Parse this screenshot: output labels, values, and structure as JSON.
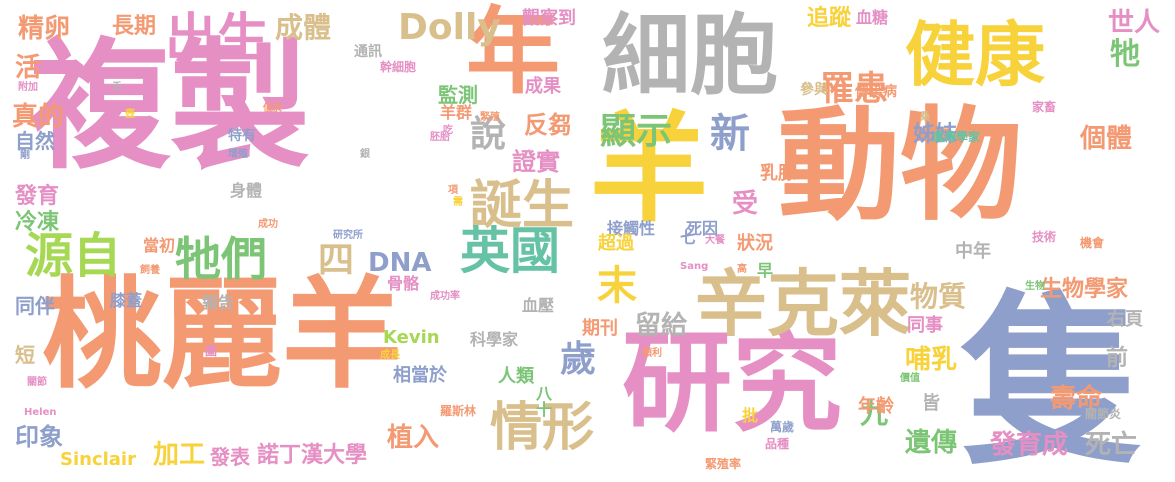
{
  "palette": {
    "orange": "#f49a73",
    "pink": "#e58fc4",
    "gray": "#b3b3b3",
    "yellow": "#f7d23a",
    "blue": "#8f9fcc",
    "green": "#7cc576",
    "tan": "#d9bf8c",
    "teal": "#66c2a5",
    "lime": "#a6d854"
  },
  "words": [
    {
      "text": "複製",
      "color": "pink"
    },
    {
      "text": "動物",
      "color": "orange"
    },
    {
      "text": "桃麗羊",
      "color": "orange"
    },
    {
      "text": "隻",
      "color": "blue"
    },
    {
      "text": "研究",
      "color": "pink"
    },
    {
      "text": "細胞",
      "color": "gray"
    },
    {
      "text": "年",
      "color": "orange"
    },
    {
      "text": "羊",
      "color": "yellow"
    },
    {
      "text": "健康",
      "color": "yellow"
    },
    {
      "text": "辛克萊",
      "color": "tan"
    },
    {
      "text": "出生",
      "color": "pink"
    },
    {
      "text": "誕生",
      "color": "tan"
    },
    {
      "text": "源自",
      "color": "lime"
    },
    {
      "text": "牠們",
      "color": "green"
    },
    {
      "text": "英國",
      "color": "teal"
    },
    {
      "text": "情形",
      "color": "tan"
    },
    {
      "text": "顯示",
      "color": "green"
    },
    {
      "text": "新",
      "color": "blue"
    },
    {
      "text": "罹患",
      "color": "orange"
    },
    {
      "text": "四",
      "color": "tan"
    },
    {
      "text": "末",
      "color": "yellow"
    },
    {
      "text": "歲",
      "color": "blue"
    },
    {
      "text": "說",
      "color": "gray"
    },
    {
      "text": "Dolly",
      "color": "tan"
    },
    {
      "text": "成體",
      "color": "tan"
    },
    {
      "text": "精卵",
      "color": "orange"
    },
    {
      "text": "長期",
      "color": "orange"
    },
    {
      "text": "世人",
      "color": "pink"
    },
    {
      "text": "牠",
      "color": "green"
    },
    {
      "text": "個體",
      "color": "orange"
    },
    {
      "text": "姊妹",
      "color": "blue"
    },
    {
      "text": "物質",
      "color": "tan"
    },
    {
      "text": "生物學家",
      "color": "orange"
    },
    {
      "text": "DNA",
      "color": "blue"
    },
    {
      "text": "留給",
      "color": "gray"
    },
    {
      "text": "證實",
      "color": "pink"
    },
    {
      "text": "反芻",
      "color": "orange"
    },
    {
      "text": "監測",
      "color": "green"
    },
    {
      "text": "哺乳",
      "color": "yellow"
    },
    {
      "text": "受",
      "color": "pink"
    },
    {
      "text": "九",
      "color": "green"
    },
    {
      "text": "壽命",
      "color": "orange"
    },
    {
      "text": "遺傳",
      "color": "green"
    },
    {
      "text": "發育成",
      "color": "pink"
    },
    {
      "text": "死亡",
      "color": "gray"
    },
    {
      "text": "諾丁漢大學",
      "color": "pink"
    },
    {
      "text": "加工",
      "color": "yellow"
    },
    {
      "text": "植入",
      "color": "orange"
    },
    {
      "text": "印象",
      "color": "blue"
    },
    {
      "text": "同伴",
      "color": "blue"
    },
    {
      "text": "真的",
      "color": "orange"
    },
    {
      "text": "發育",
      "color": "pink"
    },
    {
      "text": "活",
      "color": "orange"
    },
    {
      "text": "自然",
      "color": "blue"
    },
    {
      "text": "冷凍",
      "color": "green"
    },
    {
      "text": "短",
      "color": "tan"
    },
    {
      "text": "Sinclair",
      "color": "yellow"
    },
    {
      "text": "發表",
      "color": "pink"
    },
    {
      "text": "觀察到",
      "color": "pink"
    },
    {
      "text": "追蹤",
      "color": "yellow"
    },
    {
      "text": "血糖",
      "color": "pink"
    },
    {
      "text": "成果",
      "color": "pink"
    },
    {
      "text": "羊群",
      "color": "orange"
    },
    {
      "text": "前",
      "color": "gray"
    },
    {
      "text": "中年",
      "color": "gray"
    },
    {
      "text": "同事",
      "color": "pink"
    },
    {
      "text": "年齡",
      "color": "orange"
    },
    {
      "text": "皆",
      "color": "gray"
    },
    {
      "text": "右頁",
      "color": "gray"
    },
    {
      "text": "當初",
      "color": "orange"
    },
    {
      "text": "身體",
      "color": "gray"
    },
    {
      "text": "接觸性",
      "color": "blue"
    },
    {
      "text": "死因",
      "color": "blue"
    },
    {
      "text": "超過",
      "color": "yellow"
    },
    {
      "text": "狀況",
      "color": "orange"
    },
    {
      "text": "乳腺",
      "color": "orange"
    },
    {
      "text": "期刊",
      "color": "orange"
    },
    {
      "text": "人類",
      "color": "green"
    },
    {
      "text": "相當於",
      "color": "blue"
    },
    {
      "text": "Kevin",
      "color": "lime"
    },
    {
      "text": "科學家",
      "color": "gray"
    },
    {
      "text": "報告",
      "color": "gray"
    },
    {
      "text": "膝蓋",
      "color": "blue"
    },
    {
      "text": "骨骼",
      "color": "pink"
    },
    {
      "text": "血壓",
      "color": "gray"
    },
    {
      "text": "批",
      "color": "yellow"
    },
    {
      "text": "早",
      "color": "green"
    },
    {
      "text": "七",
      "color": "blue"
    },
    {
      "text": "八十",
      "color": "green"
    },
    {
      "text": "通訊",
      "color": "gray"
    },
    {
      "text": "參與",
      "color": "tan"
    },
    {
      "text": "傳染病",
      "color": "orange"
    },
    {
      "text": "特有",
      "color": "blue"
    },
    {
      "text": "幹細胞",
      "color": "pink"
    },
    {
      "text": "遺傳學家",
      "color": "teal"
    },
    {
      "text": "家畜",
      "color": "pink"
    },
    {
      "text": "技術",
      "color": "pink"
    },
    {
      "text": "機會",
      "color": "orange"
    },
    {
      "text": "關節炎",
      "color": "gray"
    },
    {
      "text": "萬歲",
      "color": "blue"
    },
    {
      "text": "品種",
      "color": "pink"
    },
    {
      "text": "緊殖率",
      "color": "orange"
    },
    {
      "text": "緊殖",
      "color": "orange"
    },
    {
      "text": "胚胎",
      "color": "pink"
    },
    {
      "text": "增殖",
      "color": "blue"
    },
    {
      "text": "銀",
      "color": "gray"
    },
    {
      "text": "研究所",
      "color": "blue"
    },
    {
      "text": "成功率",
      "color": "pink"
    },
    {
      "text": "順利",
      "color": "orange"
    },
    {
      "text": "羅斯林",
      "color": "orange"
    },
    {
      "text": "成長",
      "color": "yellow"
    },
    {
      "text": "Helen",
      "color": "pink"
    },
    {
      "text": "關節",
      "color": "pink"
    },
    {
      "text": "圖",
      "color": "pink"
    },
    {
      "text": "飼養",
      "color": "orange"
    },
    {
      "text": "大餐",
      "color": "pink"
    },
    {
      "text": "Sang",
      "color": "pink"
    },
    {
      "text": "高",
      "color": "orange"
    },
    {
      "text": "生物",
      "color": "green"
    },
    {
      "text": "價值",
      "color": "green"
    },
    {
      "text": "桑",
      "color": "tan"
    },
    {
      "text": "低於",
      "color": "orange"
    },
    {
      "text": "附加",
      "color": "pink"
    },
    {
      "text": "過",
      "color": "pink"
    },
    {
      "text": "夭",
      "color": "gray"
    },
    {
      "text": "剛",
      "color": "blue"
    },
    {
      "text": "吃",
      "color": "pink"
    },
    {
      "text": "壺",
      "color": "yellow"
    },
    {
      "text": "項",
      "color": "orange"
    },
    {
      "text": "需",
      "color": "yellow"
    },
    {
      "text": "成功",
      "color": "orange"
    }
  ]
}
